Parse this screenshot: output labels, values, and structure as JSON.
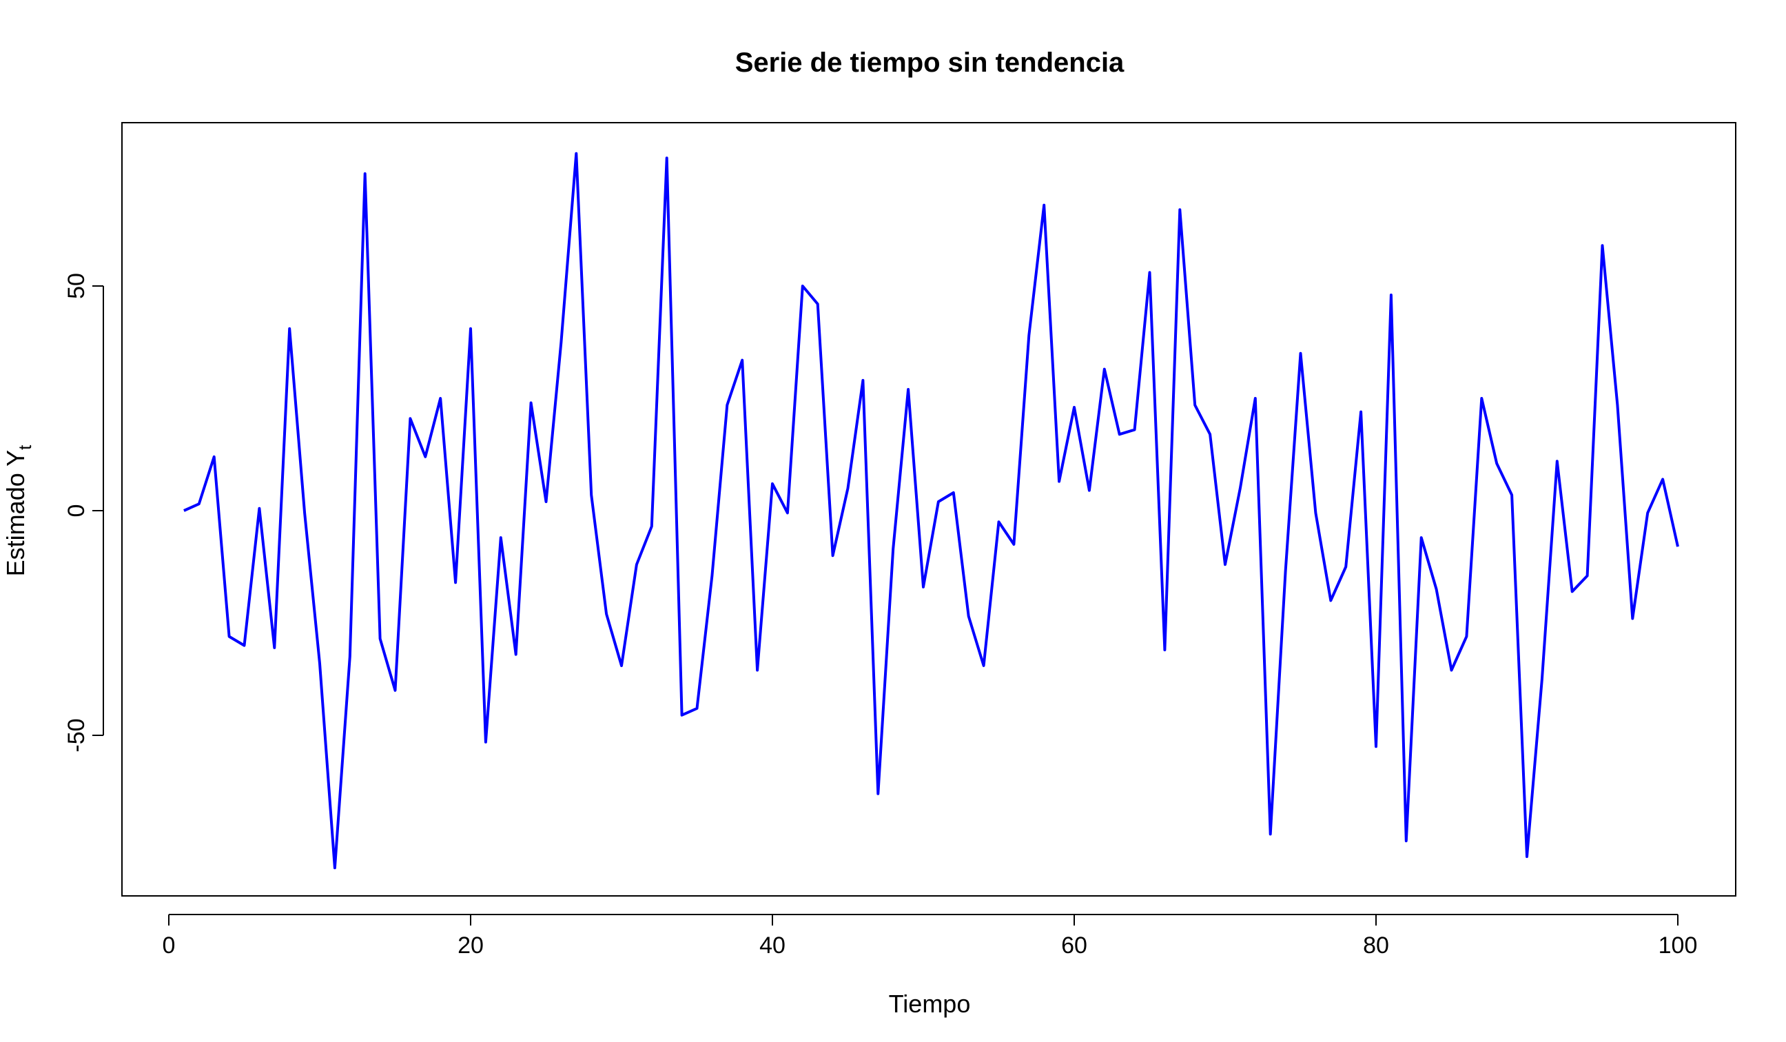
{
  "chart_data": {
    "type": "line",
    "title": "Serie de tiempo sin tendencia",
    "xlabel": "Tiempo",
    "ylabel_main": "Estimado Y",
    "ylabel_sub": "t",
    "xlim": [
      0,
      100
    ],
    "ylim": [
      -80,
      80
    ],
    "x_ticks": [
      0,
      20,
      40,
      60,
      80,
      100
    ],
    "x_tick_labels": [
      "0",
      "20",
      "40",
      "60",
      "80",
      "100"
    ],
    "y_ticks": [
      -50,
      0,
      50
    ],
    "y_tick_labels": [
      "-50",
      "0",
      "50"
    ],
    "grid": false,
    "line_color": "#0000ff",
    "series": [
      {
        "x": [
          1,
          2,
          3,
          4,
          5,
          6,
          7,
          8,
          9,
          10,
          11,
          12,
          13,
          14,
          15,
          16,
          17,
          18,
          19,
          20,
          21,
          22,
          23,
          24,
          25,
          26,
          27,
          28,
          29,
          30,
          31,
          32,
          33,
          34,
          35,
          36,
          37,
          38,
          39,
          40,
          41,
          42,
          43,
          44,
          45,
          46,
          47,
          48,
          49,
          50,
          51,
          52,
          53,
          54,
          55,
          56,
          57,
          58,
          59,
          60,
          61,
          62,
          63,
          64,
          65,
          66,
          67,
          68,
          69,
          70,
          71,
          72,
          73,
          74,
          75,
          76,
          77,
          78,
          79,
          80,
          81,
          82,
          83,
          84,
          85,
          86,
          87,
          88,
          89,
          90,
          91,
          92,
          93,
          94,
          95,
          96,
          97,
          98,
          99,
          100
        ],
        "values": [
          0,
          1.5,
          12,
          -28,
          -30,
          0.5,
          -30.5,
          40.5,
          -0.5,
          -34,
          -79.5,
          -32.5,
          75,
          -28.5,
          -40,
          20.5,
          12,
          25,
          -16,
          40.5,
          -51.5,
          -6,
          -32,
          24,
          2,
          37.5,
          79.5,
          3.5,
          -23,
          -34.5,
          -12,
          -3.5,
          78.5,
          -45.5,
          -44,
          -14.5,
          23.5,
          33.5,
          -35.5,
          6,
          -0.5,
          50,
          46,
          -10,
          5,
          29,
          -63,
          -8.5,
          27,
          -17,
          2,
          4,
          -23.5,
          -34.5,
          -2.5,
          -7.5,
          39,
          68,
          6.5,
          23,
          4.5,
          31.5,
          17,
          18,
          53,
          -31,
          67,
          23.5,
          17,
          -12,
          5,
          25,
          -72,
          -13.5,
          35,
          -0.5,
          -20,
          -12.5,
          22,
          -52.5,
          48,
          -73.5,
          -6,
          -17.5,
          -35.5,
          -28,
          25,
          10.5,
          3.5,
          -77,
          -37.5,
          11,
          -18,
          -14.5,
          59,
          23.5,
          -24,
          -0.5,
          7,
          -8
        ]
      }
    ]
  }
}
